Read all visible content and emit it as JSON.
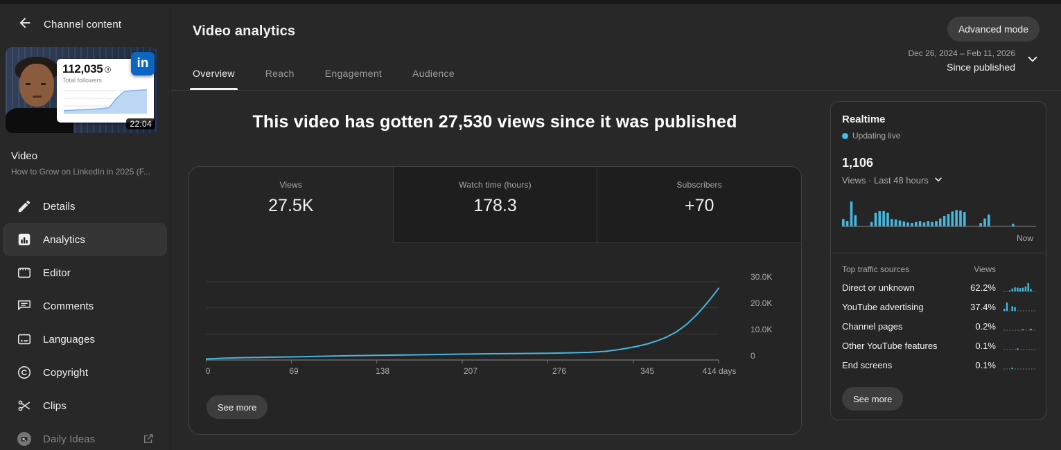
{
  "colors": {
    "page_bg": "#282828",
    "card_bg": "#252525",
    "card_border": "#404040",
    "accent_blue": "#45b8e0",
    "linkedin_blue": "#0a66c2",
    "text_primary": "#f1f1f1",
    "text_secondary": "#aaaaaa",
    "gridline": "#3c3c3c",
    "axis_line": "#8a8a8a"
  },
  "sidebar": {
    "back_label": "Channel content",
    "thumbnail": {
      "stat_number": "112,035",
      "stat_label": "Total followers",
      "logo_text": "in",
      "duration": "22:04"
    },
    "video_kind": "Video",
    "video_title": "How to Grow on LinkedIn in 2025 (F...",
    "items": [
      {
        "label": "Details",
        "icon": "pencil-icon",
        "selected": false
      },
      {
        "label": "Analytics",
        "icon": "bar-chart-icon",
        "selected": true
      },
      {
        "label": "Editor",
        "icon": "editor-icon",
        "selected": false
      },
      {
        "label": "Comments",
        "icon": "comment-icon",
        "selected": false
      },
      {
        "label": "Languages",
        "icon": "subtitles-icon",
        "selected": false
      },
      {
        "label": "Copyright",
        "icon": "copyright-icon",
        "selected": false
      },
      {
        "label": "Clips",
        "icon": "scissors-icon",
        "selected": false
      },
      {
        "label": "Daily Ideas",
        "icon": "daily-ideas-icon",
        "selected": false,
        "external": true
      }
    ]
  },
  "header": {
    "title": "Video analytics",
    "advanced_mode_label": "Advanced mode",
    "tabs": [
      {
        "label": "Overview",
        "active": true
      },
      {
        "label": "Reach",
        "active": false
      },
      {
        "label": "Engagement",
        "active": false
      },
      {
        "label": "Audience",
        "active": false
      }
    ],
    "date_range": "Dec 26, 2024 – Feb 11, 2026",
    "date_mode": "Since published"
  },
  "main": {
    "headline": "This video has gotten 27,530 views since it was published",
    "metrics": [
      {
        "label": "Views",
        "value": "27.5K",
        "selected": true
      },
      {
        "label": "Watch time (hours)",
        "value": "178.3",
        "selected": false
      },
      {
        "label": "Subscribers",
        "value": "+70",
        "selected": false
      }
    ],
    "see_more_label": "See more"
  },
  "realtime": {
    "title": "Realtime",
    "status": "Updating live",
    "count": "1,106",
    "caption": "Views · Last 48 hours",
    "now_label": "Now",
    "table": {
      "col_source": "Top traffic sources",
      "col_views": "Views",
      "rows": [
        {
          "source": "Direct or unknown",
          "views": "62.2%"
        },
        {
          "source": "YouTube advertising",
          "views": "37.4%"
        },
        {
          "source": "Channel pages",
          "views": "0.2%"
        },
        {
          "source": "Other YouTube features",
          "views": "0.1%"
        },
        {
          "source": "End screens",
          "views": "0.1%"
        }
      ]
    },
    "see_more_label": "See more"
  },
  "chart_data": [
    {
      "id": "views-over-time",
      "type": "line",
      "title": "Cumulative views since published",
      "xlabel": "days since published",
      "ylabel": "views",
      "xlim": [
        0,
        414
      ],
      "ylim": [
        0,
        30000
      ],
      "xtick_labels": [
        "0",
        "69",
        "138",
        "207",
        "276",
        "345",
        "414 days"
      ],
      "ytick_labels": [
        "0",
        "10.0K",
        "20.0K",
        "30.0K"
      ],
      "ytick_values": [
        0,
        10000,
        20000,
        30000
      ],
      "grid": true,
      "line_color": "#45b8e0",
      "x": [
        0,
        15,
        30,
        50,
        69,
        90,
        110,
        138,
        160,
        185,
        207,
        230,
        255,
        276,
        295,
        310,
        322,
        332,
        340,
        348,
        356,
        364,
        372,
        380,
        388,
        396,
        402,
        408,
        414
      ],
      "y": [
        400,
        700,
        900,
        1050,
        1200,
        1400,
        1600,
        1800,
        1950,
        2100,
        2250,
        2400,
        2500,
        2600,
        2750,
        2950,
        3300,
        3900,
        4500,
        5200,
        6100,
        7300,
        8800,
        10800,
        13600,
        17200,
        20400,
        23800,
        27530
      ]
    },
    {
      "id": "realtime-views-48h",
      "type": "bar",
      "title": "Views · Last 48 hours",
      "total_views": "1,106",
      "unit": "relative_height_0_to_1",
      "annotation": "Now",
      "values": [
        0.3,
        0.22,
        1.0,
        0.45,
        0,
        0,
        0,
        0.18,
        0.55,
        0.62,
        0.62,
        0.55,
        0.3,
        0.28,
        0.24,
        0.2,
        0.16,
        0.14,
        0.18,
        0.22,
        0.16,
        0.22,
        0.18,
        0.22,
        0.32,
        0.42,
        0.5,
        0.6,
        0.66,
        0.64,
        0.58,
        0,
        0,
        0,
        0.14,
        0.32,
        0.48,
        0,
        0,
        0,
        0,
        0,
        0.1,
        0,
        0,
        0,
        0,
        0
      ]
    },
    {
      "id": "traffic-source-sparklines",
      "type": "bar",
      "unit": "relative_height_0_to_1",
      "series": [
        {
          "name": "Direct or unknown",
          "values": [
            0,
            0,
            0.08,
            0.35,
            0.5,
            0.45,
            0.4,
            0.45,
            0.6,
            1.0,
            0.3,
            0
          ]
        },
        {
          "name": "YouTube advertising",
          "values": [
            0.25,
            1.0,
            0,
            0.55,
            0.45,
            0,
            0,
            0,
            0,
            0,
            0,
            0
          ]
        },
        {
          "name": "Channel pages",
          "values": [
            0,
            0,
            0,
            0,
            0,
            0,
            0,
            0.12,
            0,
            0,
            0.18,
            0
          ]
        },
        {
          "name": "Other YouTube features",
          "values": [
            0,
            0,
            0,
            0,
            0,
            0.15,
            0,
            0,
            0,
            0,
            0,
            0
          ]
        },
        {
          "name": "End screens",
          "values": [
            0,
            0,
            0,
            0.15,
            0,
            0,
            0,
            0,
            0,
            0,
            0,
            0
          ]
        }
      ]
    },
    {
      "id": "thumbnail-followers-chart",
      "type": "area",
      "title": "LinkedIn total followers growth (thumbnail graphic)",
      "unit": "relative_height_0_to_1",
      "values": [
        0.12,
        0.13,
        0.15,
        0.16,
        0.18,
        0.2,
        0.24,
        0.62,
        0.88,
        0.92,
        0.94,
        0.95
      ]
    }
  ]
}
